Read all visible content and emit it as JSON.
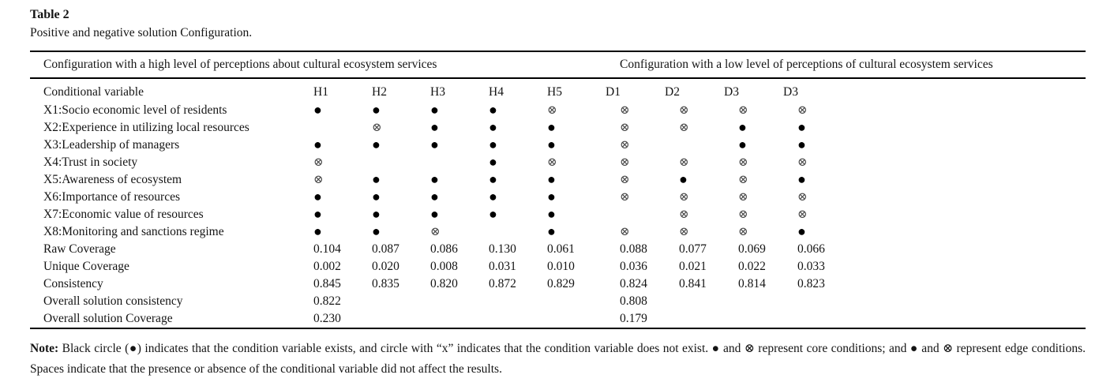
{
  "page": {
    "title": "Table 2",
    "caption": "Positive and negative solution Configuration."
  },
  "table": {
    "group_headers": [
      {
        "label": "Configuration with a high level of perceptions about cultural ecosystem services"
      },
      {
        "label": "Configuration with a low level of perceptions of cultural ecosystem services"
      }
    ],
    "columns": [
      "Conditional variable",
      "H1",
      "H2",
      "H3",
      "H4",
      "H5",
      "D1",
      "D2",
      "D3",
      "D3"
    ],
    "symbols": {
      "present": "●",
      "absent": "⊗"
    },
    "condition_rows": [
      {
        "label": "X1:Socio economic level of residents",
        "cells": [
          "present",
          "present",
          "present",
          "present",
          "absent",
          "absent",
          "absent",
          "absent",
          "absent"
        ]
      },
      {
        "label": "X2:Experience in utilizing local resources",
        "cells": [
          "",
          "absent",
          "present",
          "present",
          "present",
          "absent",
          "absent",
          "present",
          "present"
        ]
      },
      {
        "label": "X3:Leadership of managers",
        "cells": [
          "present",
          "present",
          "present",
          "present",
          "present",
          "absent",
          "",
          "present",
          "present"
        ]
      },
      {
        "label": "X4:Trust in society",
        "cells": [
          "absent",
          "",
          "",
          "present",
          "absent",
          "absent",
          "absent",
          "absent",
          "absent"
        ]
      },
      {
        "label": "X5:Awareness of ecosystem",
        "cells": [
          "absent",
          "present",
          "present",
          "present",
          "present",
          "absent",
          "present",
          "absent",
          "present"
        ]
      },
      {
        "label": "X6:Importance of resources",
        "cells": [
          "present",
          "present",
          "present",
          "present",
          "present",
          "absent",
          "absent",
          "absent",
          "absent"
        ]
      },
      {
        "label": "X7:Economic value of resources",
        "cells": [
          "present",
          "present",
          "present",
          "present",
          "present",
          "",
          "absent",
          "absent",
          "absent"
        ]
      },
      {
        "label": "X8:Monitoring and sanctions regime",
        "cells": [
          "present",
          "present",
          "absent",
          "",
          "present",
          "absent",
          "absent",
          "absent",
          "present"
        ]
      }
    ],
    "stat_rows": [
      {
        "label": "Raw Coverage",
        "cells": [
          "0.104",
          "0.087",
          "0.086",
          "0.130",
          "0.061",
          "0.088",
          "0.077",
          "0.069",
          "0.066"
        ]
      },
      {
        "label": "Unique Coverage",
        "cells": [
          "0.002",
          "0.020",
          "0.008",
          "0.031",
          "0.010",
          "0.036",
          "0.021",
          "0.022",
          "0.033"
        ]
      },
      {
        "label": "Consistency",
        "cells": [
          "0.845",
          "0.835",
          "0.820",
          "0.872",
          "0.829",
          "0.824",
          "0.841",
          "0.814",
          "0.823"
        ]
      },
      {
        "label": "Overall solution consistency",
        "cells": [
          "0.822",
          "",
          "",
          "",
          "",
          "0.808",
          "",
          "",
          ""
        ]
      },
      {
        "label": "Overall solution Coverage",
        "cells": [
          "0.230",
          "",
          "",
          "",
          "",
          "0.179",
          "",
          "",
          ""
        ]
      }
    ]
  },
  "note": {
    "label": "Note:",
    "text": " Black circle (●) indicates that the condition variable exists, and circle with “x” indicates that the condition variable does not exist. ● and ⊗ represent core conditions; and ● and ⊗ represent edge conditions. Spaces indicate that the presence or absence of the conditional variable did not affect the results."
  }
}
